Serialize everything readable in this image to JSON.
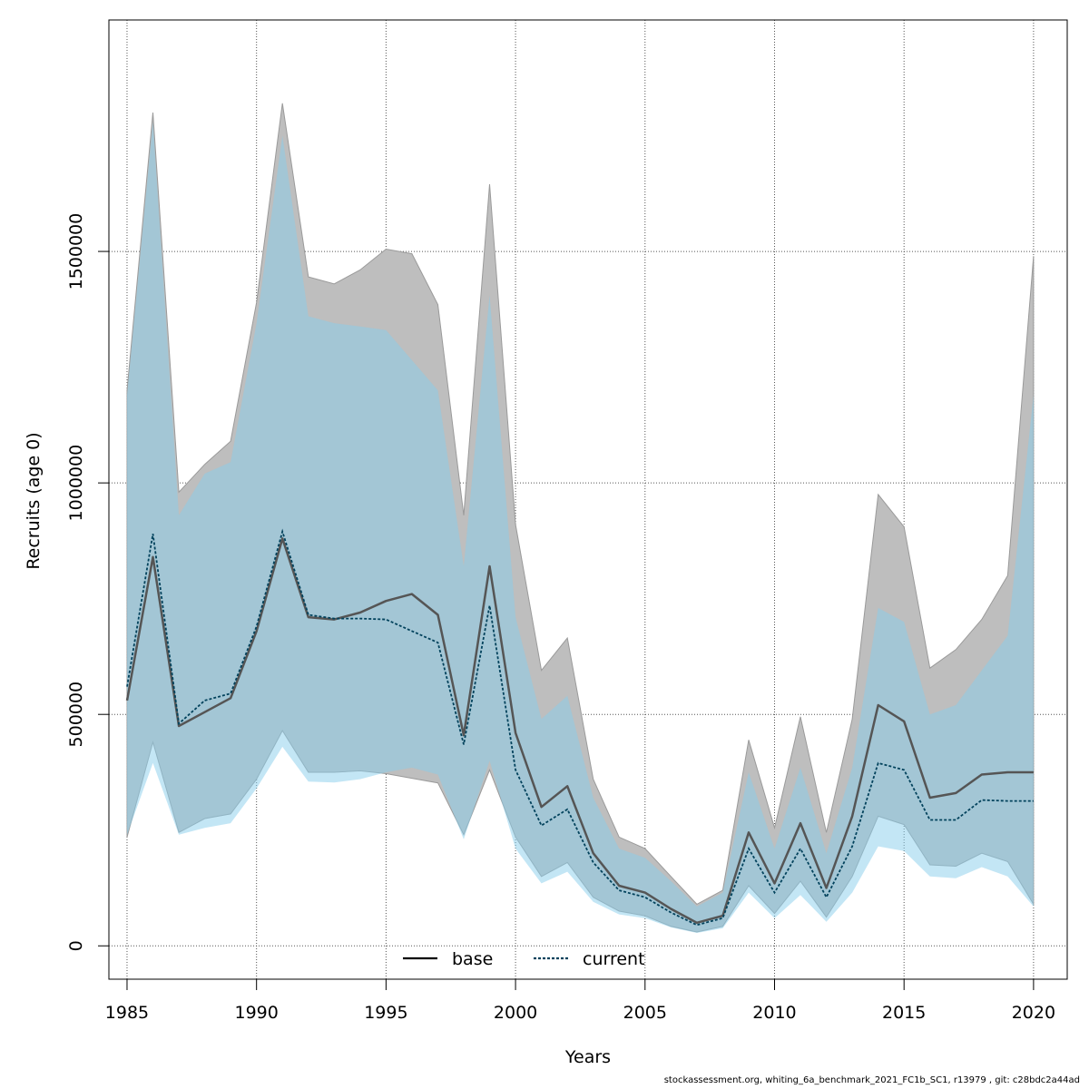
{
  "chart_data": {
    "type": "area",
    "xlabel": "Years",
    "ylabel": "Recruits (age 0)",
    "xlim": [
      1984.3,
      2021.3
    ],
    "ylim": [
      -72000,
      2000000
    ],
    "x_ticks": [
      1985,
      1990,
      1995,
      2000,
      2005,
      2010,
      2015,
      2020
    ],
    "y_ticks": [
      0,
      500000,
      1000000,
      1500000
    ],
    "grid": true,
    "legend_position": "bottom-center",
    "x": [
      1985,
      1986,
      1987,
      1988,
      1989,
      1990,
      1991,
      1992,
      1993,
      1994,
      1995,
      1996,
      1997,
      1998,
      1999,
      2000,
      2001,
      2002,
      2003,
      2004,
      2005,
      2006,
      2007,
      2008,
      2009,
      2010,
      2011,
      2012,
      2013,
      2014,
      2015,
      2016,
      2017,
      2018,
      2019,
      2020
    ],
    "series": [
      {
        "name": "base",
        "line_color": "#555555",
        "band_color": "#bebebe",
        "values": [
          530000,
          840000,
          475000,
          505000,
          535000,
          680000,
          880000,
          710000,
          705000,
          720000,
          745000,
          760000,
          715000,
          455000,
          820000,
          460000,
          300000,
          345000,
          200000,
          130000,
          115000,
          80000,
          50000,
          65000,
          245000,
          135000,
          265000,
          125000,
          280000,
          520000,
          485000,
          320000,
          330000,
          370000,
          375000,
          375000
        ],
        "lower": [
          235000,
          440000,
          245000,
          275000,
          285000,
          360000,
          465000,
          375000,
          375000,
          378000,
          372000,
          362000,
          352000,
          240000,
          380000,
          235000,
          150000,
          180000,
          105000,
          75000,
          65000,
          42000,
          30000,
          42000,
          130000,
          70000,
          140000,
          62000,
          150000,
          280000,
          262000,
          175000,
          172000,
          200000,
          182000,
          90000
        ],
        "upper": [
          1200000,
          1800000,
          980000,
          1040000,
          1090000,
          1390000,
          1820000,
          1445000,
          1430000,
          1460000,
          1505000,
          1495000,
          1385000,
          930000,
          1645000,
          910000,
          595000,
          665000,
          360000,
          235000,
          210000,
          150000,
          90000,
          120000,
          445000,
          255000,
          495000,
          245000,
          490000,
          975000,
          905000,
          600000,
          640000,
          705000,
          800000,
          1490000
        ]
      },
      {
        "name": "current",
        "line_color": "#02425c",
        "band_color": "#87ceeb",
        "values": [
          560000,
          890000,
          480000,
          530000,
          545000,
          690000,
          895000,
          715000,
          707000,
          707000,
          705000,
          680000,
          655000,
          435000,
          735000,
          380000,
          260000,
          295000,
          180000,
          120000,
          105000,
          72000,
          45000,
          60000,
          210000,
          115000,
          210000,
          105000,
          215000,
          395000,
          380000,
          272000,
          272000,
          315000,
          313000,
          313000
        ],
        "lower": [
          240000,
          395000,
          240000,
          255000,
          265000,
          340000,
          430000,
          355000,
          353000,
          360000,
          375000,
          385000,
          370000,
          230000,
          400000,
          210000,
          135000,
          160000,
          95000,
          68000,
          60000,
          40000,
          28000,
          38000,
          115000,
          60000,
          110000,
          52000,
          115000,
          215000,
          205000,
          150000,
          146000,
          170000,
          150000,
          85000
        ],
        "upper": [
          1190000,
          1780000,
          930000,
          1020000,
          1045000,
          1345000,
          1750000,
          1360000,
          1345000,
          1338000,
          1330000,
          1265000,
          1200000,
          820000,
          1405000,
          710000,
          490000,
          540000,
          320000,
          210000,
          190000,
          140000,
          85000,
          115000,
          375000,
          210000,
          385000,
          200000,
          385000,
          730000,
          700000,
          500000,
          520000,
          595000,
          670000,
          1190000
        ]
      }
    ]
  },
  "footer": {
    "text": "stockassessment.org, whiting_6a_benchmark_2021_FC1b_SC1, r13979 , git: c28bdc2a44ad"
  }
}
